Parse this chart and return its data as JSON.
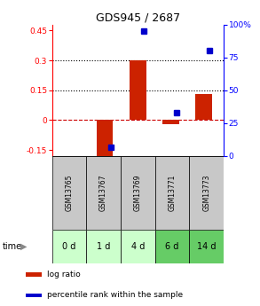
{
  "title": "GDS945 / 2687",
  "samples": [
    "GSM13765",
    "GSM13767",
    "GSM13769",
    "GSM13771",
    "GSM13773"
  ],
  "time_labels": [
    "0 d",
    "1 d",
    "4 d",
    "6 d",
    "14 d"
  ],
  "log_ratio": [
    0.0,
    -0.19,
    0.3,
    -0.02,
    0.13
  ],
  "percentile_rank": [
    null,
    7.0,
    95.0,
    33.0,
    80.0
  ],
  "bar_color": "#cc2200",
  "dot_color": "#0000cc",
  "ylim_left": [
    -0.18,
    0.48
  ],
  "ylim_right": [
    0,
    100
  ],
  "yticks_left": [
    -0.15,
    0.0,
    0.15,
    0.3,
    0.45
  ],
  "ytick_left_labels": [
    "-0.15",
    "0",
    "0.15",
    "0.3",
    "0.45"
  ],
  "yticks_right": [
    0,
    25,
    50,
    75,
    100
  ],
  "ytick_right_labels": [
    "0",
    "25",
    "50",
    "75",
    "100%"
  ],
  "zero_line_color": "#cc0000",
  "dotted_line_color": "#000000",
  "sample_bg_color": "#c8c8c8",
  "time_bg_colors": [
    "#ccffcc",
    "#ccffcc",
    "#ccffcc",
    "#66cc66",
    "#66cc66"
  ],
  "legend_log_ratio": "log ratio",
  "legend_percentile": "percentile rank within the sample",
  "bar_width": 0.5,
  "x_positions": [
    0,
    1,
    2,
    3,
    4
  ]
}
